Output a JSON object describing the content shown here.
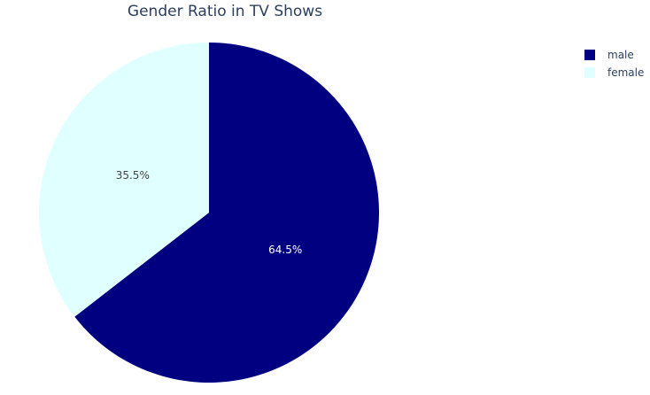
{
  "chart_data": {
    "type": "pie",
    "title": "Gender Ratio in TV Shows",
    "categories": [
      "male",
      "female"
    ],
    "values": [
      64.5,
      35.5
    ],
    "labels_text": [
      "64.5%",
      "35.5%"
    ],
    "colors": [
      "#000080",
      "#e0ffff"
    ],
    "text_colors": [
      "#ffffff",
      "#444444"
    ],
    "direction": "clockwise",
    "rotation_start": "top",
    "legend": {
      "position": "top-right",
      "entries": [
        {
          "label": "male",
          "color": "#000080"
        },
        {
          "label": "female",
          "color": "#e0ffff"
        }
      ]
    }
  }
}
